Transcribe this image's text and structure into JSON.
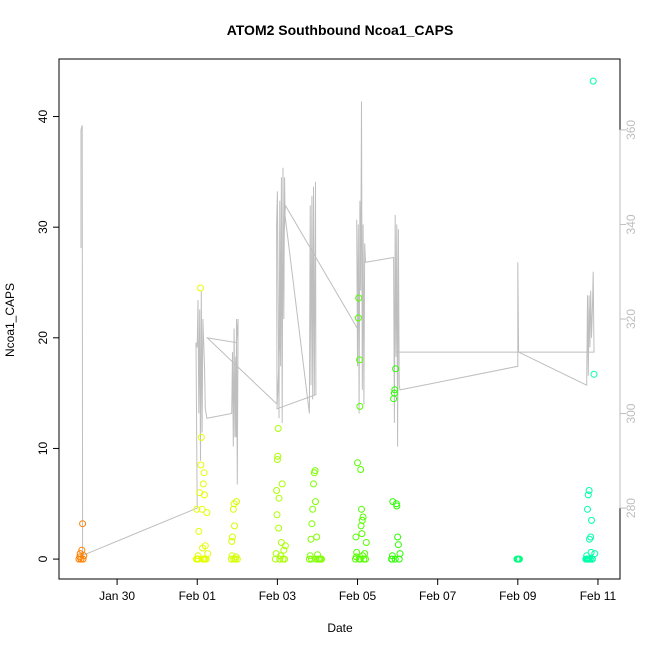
{
  "chart_data": {
    "type": "scatter",
    "title": "ATOM2 Southbound Ncoa1_CAPS",
    "xlabel": "Date",
    "ylabel": "Ncoa1_CAPS",
    "x_tick_labels": [
      "Jan 30",
      "Feb 01",
      "Feb 03",
      "Feb 05",
      "Feb 07",
      "Feb 09",
      "Feb 11"
    ],
    "x_tick_values": [
      30,
      32,
      34,
      36,
      38,
      40,
      42
    ],
    "xlim": [
      28.55,
      42.55
    ],
    "ylim": [
      -1.8,
      45.2
    ],
    "y_ticks": [
      0,
      10,
      20,
      30,
      40
    ],
    "y2lim": [
      265,
      375
    ],
    "y2_ticks": [
      280,
      300,
      320,
      340,
      360
    ],
    "colors": {
      "axis": "#000000",
      "right_axis": "#bebebe",
      "trace": "#bebebe"
    },
    "series": [
      {
        "color": "#ff7f00",
        "points": [
          [
            29.05,
            0
          ],
          [
            29.07,
            0.2
          ],
          [
            29.08,
            0.5
          ],
          [
            29.1,
            0
          ],
          [
            29.12,
            0.8
          ],
          [
            29.14,
            3.2
          ],
          [
            29.15,
            0
          ],
          [
            29.17,
            0.3
          ]
        ]
      },
      {
        "color": "#e5ff00",
        "points": [
          [
            32.0,
            0
          ],
          [
            32.02,
            0.3
          ],
          [
            32.04,
            2.5
          ],
          [
            32.06,
            6
          ],
          [
            32.08,
            24.5
          ],
          [
            32.09,
            8.5
          ],
          [
            32.1,
            11
          ],
          [
            32.12,
            4.5
          ],
          [
            32.14,
            0
          ],
          [
            32.15,
            6.8
          ],
          [
            32.17,
            7.8
          ],
          [
            32.18,
            5.8
          ],
          [
            32.2,
            1.2
          ],
          [
            32.22,
            0
          ],
          [
            32.24,
            4.2
          ],
          [
            32.26,
            0.5
          ],
          [
            31.98,
            0
          ],
          [
            31.99,
            4.5
          ],
          [
            32.03,
            0
          ],
          [
            32.13,
            1
          ],
          [
            32.16,
            0
          ],
          [
            32.19,
            0
          ]
        ]
      },
      {
        "color": "#d4ff00",
        "points": [
          [
            32.85,
            0
          ],
          [
            32.87,
            0.3
          ],
          [
            32.88,
            2
          ],
          [
            32.9,
            4.5
          ],
          [
            32.92,
            5
          ],
          [
            32.93,
            3
          ],
          [
            32.95,
            0
          ],
          [
            32.97,
            0.2
          ],
          [
            32.98,
            5.2
          ],
          [
            33.0,
            0
          ],
          [
            32.86,
            1.6
          ],
          [
            32.91,
            0
          ]
        ]
      },
      {
        "color": "#aaff00",
        "points": [
          [
            33.95,
            0
          ],
          [
            33.97,
            0.5
          ],
          [
            33.98,
            6.2
          ],
          [
            34.0,
            9
          ],
          [
            34.02,
            11.8
          ],
          [
            34.04,
            5.5
          ],
          [
            34.06,
            0
          ],
          [
            34.08,
            0.3
          ],
          [
            34.1,
            1.5
          ],
          [
            34.12,
            6.8
          ],
          [
            34.14,
            0
          ],
          [
            34.16,
            0.8
          ],
          [
            34.18,
            0
          ],
          [
            34.2,
            1.2
          ],
          [
            33.99,
            4
          ],
          [
            34.01,
            9.3
          ],
          [
            34.03,
            2.8
          ]
        ]
      },
      {
        "color": "#80ff00",
        "points": [
          [
            34.8,
            0
          ],
          [
            34.82,
            0.3
          ],
          [
            34.84,
            1.8
          ],
          [
            34.86,
            3.2
          ],
          [
            34.88,
            4.5
          ],
          [
            34.9,
            6.8
          ],
          [
            34.92,
            7.8
          ],
          [
            34.94,
            8
          ],
          [
            34.96,
            0
          ],
          [
            34.98,
            2
          ],
          [
            35.0,
            0.4
          ],
          [
            35.02,
            0
          ],
          [
            35.05,
            0
          ],
          [
            35.08,
            0
          ],
          [
            35.1,
            0
          ],
          [
            34.85,
            0
          ],
          [
            34.95,
            5.2
          ]
        ]
      },
      {
        "color": "#55ff00",
        "points": [
          [
            35.95,
            0
          ],
          [
            35.97,
            0.2
          ],
          [
            35.98,
            0.6
          ],
          [
            36.0,
            8.7
          ],
          [
            36.02,
            21.8
          ],
          [
            36.03,
            23.6
          ],
          [
            36.05,
            18
          ],
          [
            36.06,
            13.8
          ],
          [
            36.08,
            8.1
          ],
          [
            36.1,
            4.5
          ],
          [
            36.12,
            3.5
          ],
          [
            36.14,
            3.8
          ],
          [
            36.16,
            0
          ],
          [
            36.18,
            0.5
          ],
          [
            36.2,
            0
          ],
          [
            36.22,
            1.5
          ],
          [
            35.96,
            2
          ],
          [
            36.04,
            0
          ],
          [
            36.07,
            0
          ],
          [
            36.09,
            3
          ],
          [
            36.11,
            2.3
          ],
          [
            36.13,
            0.3
          ]
        ]
      },
      {
        "color": "#2bff00",
        "points": [
          [
            36.85,
            0
          ],
          [
            36.87,
            0.3
          ],
          [
            36.88,
            5.2
          ],
          [
            36.9,
            14.5
          ],
          [
            36.92,
            15
          ],
          [
            36.93,
            15.3
          ],
          [
            36.95,
            17.2
          ],
          [
            36.97,
            5
          ],
          [
            36.98,
            4.8
          ],
          [
            37.0,
            2
          ],
          [
            37.02,
            1.3
          ],
          [
            37.04,
            0
          ],
          [
            37.06,
            0.5
          ],
          [
            36.86,
            0
          ],
          [
            36.94,
            0
          ]
        ]
      },
      {
        "color": "#00ff80",
        "points": [
          [
            39.98,
            0
          ],
          [
            40.0,
            0
          ],
          [
            40.02,
            0
          ],
          [
            40.04,
            0
          ]
        ]
      },
      {
        "color": "#00ffaa",
        "points": [
          [
            41.7,
            0
          ],
          [
            41.72,
            0.3
          ],
          [
            41.74,
            4.5
          ],
          [
            41.76,
            5.8
          ],
          [
            41.78,
            6.2
          ],
          [
            41.8,
            0
          ],
          [
            41.82,
            2
          ],
          [
            41.84,
            3.5
          ],
          [
            41.86,
            0
          ],
          [
            41.88,
            43.2
          ],
          [
            41.9,
            16.7
          ],
          [
            41.92,
            0.5
          ],
          [
            41.71,
            0
          ],
          [
            41.73,
            0
          ],
          [
            41.75,
            0
          ],
          [
            41.77,
            0
          ],
          [
            41.79,
            1.8
          ],
          [
            41.81,
            0
          ],
          [
            41.83,
            0.6
          ],
          [
            41.85,
            0
          ]
        ]
      }
    ],
    "trace": [
      [
        29.1,
        335
      ],
      [
        29.1,
        360
      ],
      [
        29.13,
        361
      ],
      [
        29.14,
        270
      ],
      [
        32.0,
        280
      ],
      [
        31.97,
        315
      ],
      [
        32.0,
        314
      ],
      [
        32.02,
        324
      ],
      [
        32.04,
        300
      ],
      [
        32.06,
        322
      ],
      [
        32.08,
        290
      ],
      [
        32.1,
        326
      ],
      [
        32.12,
        296
      ],
      [
        32.14,
        320
      ],
      [
        32.18,
        310
      ],
      [
        32.2,
        301
      ],
      [
        32.22,
        300
      ],
      [
        32.24,
        299
      ],
      [
        32.86,
        300
      ],
      [
        32.88,
        313
      ],
      [
        32.9,
        293
      ],
      [
        32.92,
        318
      ],
      [
        32.94,
        295
      ],
      [
        32.96,
        312
      ],
      [
        32.97,
        295
      ],
      [
        32.98,
        320
      ],
      [
        33.0,
        285
      ],
      [
        33.02,
        320
      ],
      [
        32.98,
        315
      ],
      [
        32.25,
        316
      ],
      [
        33.99,
        302
      ],
      [
        33.98,
        340
      ],
      [
        34.0,
        347
      ],
      [
        34.04,
        299
      ],
      [
        34.06,
        345
      ],
      [
        34.08,
        310
      ],
      [
        34.1,
        350
      ],
      [
        34.12,
        298
      ],
      [
        34.14,
        352
      ],
      [
        34.16,
        320
      ],
      [
        34.18,
        350
      ],
      [
        34.19,
        342
      ],
      [
        34.8,
        300
      ],
      [
        34.82,
        344
      ],
      [
        34.84,
        306
      ],
      [
        34.86,
        346
      ],
      [
        34.88,
        303
      ],
      [
        34.9,
        348
      ],
      [
        34.92,
        304
      ],
      [
        34.95,
        349
      ],
      [
        34.96,
        304
      ],
      [
        33.99,
        301
      ],
      [
        34.2,
        344
      ],
      [
        36.0,
        318
      ],
      [
        35.98,
        341
      ],
      [
        36.0,
        310
      ],
      [
        36.02,
        340
      ],
      [
        36.04,
        300
      ],
      [
        36.06,
        345
      ],
      [
        36.08,
        326
      ],
      [
        36.1,
        366
      ],
      [
        36.12,
        305
      ],
      [
        36.14,
        340
      ],
      [
        36.16,
        302
      ],
      [
        36.18,
        336
      ],
      [
        36.2,
        332
      ],
      [
        36.9,
        333
      ],
      [
        36.92,
        298
      ],
      [
        36.94,
        342
      ],
      [
        36.96,
        312
      ],
      [
        36.98,
        340
      ],
      [
        37.0,
        293
      ],
      [
        37.02,
        339
      ],
      [
        37.04,
        306
      ],
      [
        37.06,
        305
      ],
      [
        40.0,
        310
      ],
      [
        40.0,
        332
      ],
      [
        40.02,
        313
      ],
      [
        41.72,
        306
      ],
      [
        41.74,
        325
      ],
      [
        41.76,
        308
      ],
      [
        41.78,
        325
      ],
      [
        41.8,
        314
      ],
      [
        41.82,
        326
      ],
      [
        41.84,
        316
      ],
      [
        41.86,
        322
      ],
      [
        41.88,
        330
      ],
      [
        41.9,
        313
      ],
      [
        40.06,
        313
      ],
      [
        36.95,
        313
      ]
    ]
  }
}
